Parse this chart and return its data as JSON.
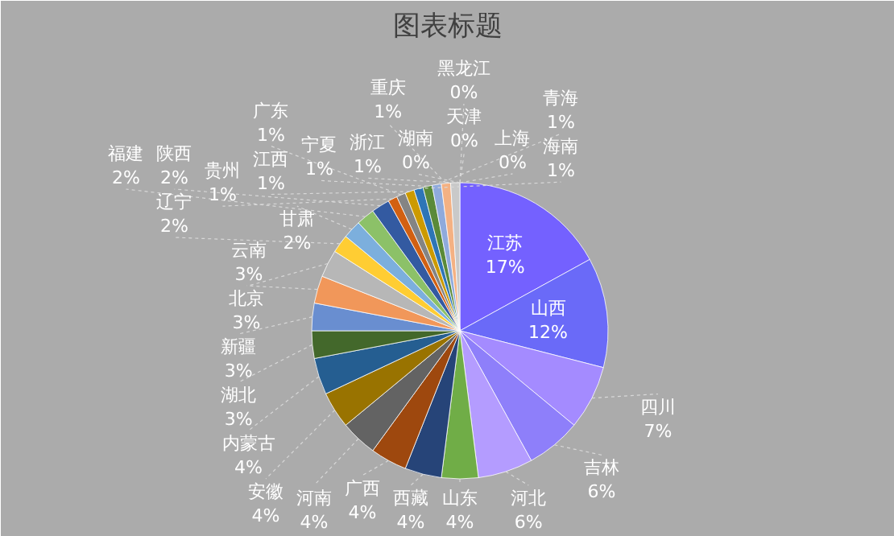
{
  "chart_data": {
    "type": "pie",
    "title": "图表标题",
    "categories": [
      "江苏",
      "山西",
      "四川",
      "吉林",
      "河北",
      "山东",
      "西藏",
      "广西",
      "河南",
      "安徽",
      "内蒙古",
      "湖北",
      "新疆",
      "北京",
      "云南",
      "辽宁",
      "甘肃",
      "福建",
      "陕西",
      "贵州",
      "广东",
      "江西",
      "海南",
      "宁夏",
      "青海",
      "重庆",
      "浙江",
      "黑龙江",
      "天津",
      "上海",
      "湖南"
    ],
    "values": [
      17,
      12,
      7,
      6,
      6,
      4,
      4,
      4,
      4,
      4,
      4,
      3,
      3,
      3,
      3,
      2,
      2,
      2,
      2,
      1,
      1,
      1,
      1,
      1,
      1,
      1,
      1,
      0,
      0,
      0,
      0
    ],
    "value_labels": [
      "17%",
      "12%",
      "7%",
      "6%",
      "6%",
      "4%",
      "4%",
      "4%",
      "4%",
      "4%",
      "4%",
      "3%",
      "3%",
      "3%",
      "3%",
      "2%",
      "2%",
      "2%",
      "2%",
      "1%",
      "1%",
      "1%",
      "1%",
      "1%",
      "1%",
      "1%",
      "1%",
      "0%",
      "0%",
      "0%",
      "0%"
    ],
    "colors": [
      "#7461ff",
      "#6a6af8",
      "#a48bff",
      "#8e7ffa",
      "#b49cff",
      "#70ad47",
      "#264478",
      "#9e480e",
      "#636363",
      "#997300",
      "#255e91",
      "#43682b",
      "#698ed0",
      "#f1975a",
      "#b7b7b7",
      "#ffcd33",
      "#7cafdd",
      "#8cc168",
      "#335aa1",
      "#d26012",
      "#848484",
      "#cc9a00",
      "#2e75b6",
      "#5a8a39",
      "#8faadc",
      "#f4b183",
      "#c9c9c9",
      "#ffd966",
      "#9dc3e6",
      "#a9d18e",
      "#7e9bd3"
    ]
  }
}
